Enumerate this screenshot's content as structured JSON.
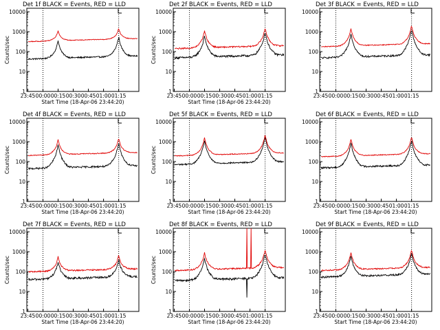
{
  "figure": {
    "background": "#ffffff",
    "colors": {
      "events": "#000000",
      "lld": "#e00000",
      "axes": "#000000"
    }
  },
  "chart_data": [
    {
      "type": "line",
      "title": "Det 1f BLACK = Events, RED = LLD",
      "xlabel": "Start Time (18-Apr-06 23:44:20)",
      "ylabel": "Counts/sec",
      "x_ticks": [
        "23:45",
        "00:00",
        "00:15",
        "00:30",
        "00:45",
        "01:00",
        "01:15"
      ],
      "y_ticks": [
        "1",
        "10",
        "100",
        "1000",
        "10000"
      ],
      "yscale": "log",
      "ylim": [
        1,
        15000
      ],
      "xlim_minutes": [
        -16,
        95
      ],
      "vlines_minutes": [
        0,
        75
      ],
      "series": [
        {
          "name": "Events",
          "color": "#000000",
          "base": 48,
          "peaks": [
            {
              "at": 15,
              "h": 400
            },
            {
              "at": 75,
              "h": 600
            }
          ],
          "noise": 0.08
        },
        {
          "name": "LLD",
          "color": "#e00000",
          "base": 360,
          "peaks": [
            {
              "at": 15,
              "h": 1200
            },
            {
              "at": 75,
              "h": 1500
            }
          ],
          "noise": 0.04
        }
      ]
    },
    {
      "type": "line",
      "title": "Det 2f BLACK = Events, RED = LLD",
      "xlabel": "Start Time (18-Apr-06 23:44:20)",
      "ylabel": "Counts/sec",
      "x_ticks": [
        "23:45",
        "00:00",
        "00:15",
        "00:30",
        "00:45",
        "01:00",
        "01:15"
      ],
      "y_ticks": [
        "1",
        "10",
        "100",
        "1000",
        "10000"
      ],
      "yscale": "log",
      "ylim": [
        1,
        15000
      ],
      "xlim_minutes": [
        -16,
        95
      ],
      "vlines_minutes": [
        0,
        75
      ],
      "series": [
        {
          "name": "Events",
          "color": "#000000",
          "base": 55,
          "peaks": [
            {
              "at": 15,
              "h": 700
            },
            {
              "at": 75,
              "h": 1100
            }
          ],
          "noise": 0.12
        },
        {
          "name": "LLD",
          "color": "#e00000",
          "base": 160,
          "peaks": [
            {
              "at": 15,
              "h": 1300
            },
            {
              "at": 75,
              "h": 1700
            }
          ],
          "noise": 0.08
        }
      ]
    },
    {
      "type": "line",
      "title": "Det 3f BLACK = Events, RED = LLD",
      "xlabel": "",
      "ylabel": "",
      "x_ticks": [
        "23:45",
        "00:00",
        "00:15",
        "00:30",
        "00:45",
        "01:00",
        "01:15"
      ],
      "y_ticks": [
        "1",
        "10",
        "100",
        "1000",
        "10000"
      ],
      "yscale": "log",
      "ylim": [
        1,
        15000
      ],
      "xlim_minutes": [
        -16,
        95
      ],
      "vlines_minutes": [
        0,
        75
      ],
      "series": [
        {
          "name": "Events",
          "color": "#000000",
          "base": 55,
          "peaks": [
            {
              "at": 15,
              "h": 900
            },
            {
              "at": 75,
              "h": 1500
            }
          ],
          "noise": 0.1
        },
        {
          "name": "LLD",
          "color": "#e00000",
          "base": 200,
          "peaks": [
            {
              "at": 15,
              "h": 1600
            },
            {
              "at": 75,
              "h": 2200
            }
          ],
          "noise": 0.05
        }
      ]
    },
    {
      "type": "line",
      "title": "Det 4f BLACK = Events, RED = LLD",
      "xlabel": "Start Time (18-Apr-06 23:44:20)",
      "ylabel": "Counts/sec",
      "x_ticks": [
        "23:45",
        "00:00",
        "00:15",
        "00:30",
        "00:45",
        "01:00",
        "01:15"
      ],
      "y_ticks": [
        "1",
        "10",
        "100",
        "1000",
        "10000"
      ],
      "yscale": "log",
      "ylim": [
        1,
        15000
      ],
      "xlim_minutes": [
        -16,
        95
      ],
      "vlines_minutes": [
        0,
        75
      ],
      "series": [
        {
          "name": "Events",
          "color": "#000000",
          "base": 50,
          "peaks": [
            {
              "at": 15,
              "h": 800
            },
            {
              "at": 75,
              "h": 1000
            }
          ],
          "noise": 0.1
        },
        {
          "name": "LLD",
          "color": "#e00000",
          "base": 230,
          "peaks": [
            {
              "at": 15,
              "h": 1400
            },
            {
              "at": 75,
              "h": 1600
            }
          ],
          "noise": 0.05
        }
      ]
    },
    {
      "type": "line",
      "title": "Det 5f BLACK = Events, RED = LLD",
      "xlabel": "Start Time (18-Apr-06 23:44:20)",
      "ylabel": "Counts/sec",
      "x_ticks": [
        "23:45",
        "00:00",
        "00:15",
        "00:30",
        "00:45",
        "01:00",
        "01:15"
      ],
      "y_ticks": [
        "1",
        "10",
        "100",
        "1000",
        "10000"
      ],
      "yscale": "log",
      "ylim": [
        1,
        15000
      ],
      "xlim_minutes": [
        -16,
        95
      ],
      "vlines_minutes": [
        0,
        75
      ],
      "series": [
        {
          "name": "Events",
          "color": "#000000",
          "base": 80,
          "peaks": [
            {
              "at": 15,
              "h": 1300
            },
            {
              "at": 75,
              "h": 2000
            }
          ],
          "noise": 0.08
        },
        {
          "name": "LLD",
          "color": "#e00000",
          "base": 220,
          "peaks": [
            {
              "at": 15,
              "h": 1800
            },
            {
              "at": 75,
              "h": 2400
            }
          ],
          "noise": 0.05
        }
      ]
    },
    {
      "type": "line",
      "title": "Det 6f BLACK = Events, RED = LLD",
      "xlabel": "Start Time (18-Apr-06 23:44:20)",
      "ylabel": "",
      "x_ticks": [
        "23:45",
        "00:00",
        "00:15",
        "00:30",
        "00:45",
        "01:00",
        "01:15"
      ],
      "y_ticks": [
        "1",
        "10",
        "100",
        "1000",
        "10000"
      ],
      "yscale": "log",
      "ylim": [
        1,
        15000
      ],
      "xlim_minutes": [
        -16,
        95
      ],
      "vlines_minutes": [
        0,
        75
      ],
      "series": [
        {
          "name": "Events",
          "color": "#000000",
          "base": 55,
          "peaks": [
            {
              "at": 15,
              "h": 1000
            },
            {
              "at": 75,
              "h": 1300
            }
          ],
          "noise": 0.1
        },
        {
          "name": "LLD",
          "color": "#e00000",
          "base": 200,
          "peaks": [
            {
              "at": 15,
              "h": 1500
            },
            {
              "at": 75,
              "h": 1900
            }
          ],
          "noise": 0.05
        }
      ]
    },
    {
      "type": "line",
      "title": "Det 7f BLACK = Events, RED = LLD",
      "xlabel": "Start Time (18-Apr-06 23:44:20)",
      "ylabel": "Counts/sec",
      "x_ticks": [
        "23:45",
        "00:00",
        "00:15",
        "00:30",
        "00:45",
        "01:00",
        "01:15"
      ],
      "y_ticks": [
        "1",
        "10",
        "100",
        "1000",
        "10000"
      ],
      "yscale": "log",
      "ylim": [
        1,
        15000
      ],
      "xlim_minutes": [
        -16,
        95
      ],
      "vlines_minutes": [
        0,
        75
      ],
      "series": [
        {
          "name": "Events",
          "color": "#000000",
          "base": 45,
          "peaks": [
            {
              "at": 15,
              "h": 350
            },
            {
              "at": 75,
              "h": 450
            }
          ],
          "noise": 0.12
        },
        {
          "name": "LLD",
          "color": "#e00000",
          "base": 110,
          "peaks": [
            {
              "at": 15,
              "h": 600
            },
            {
              "at": 75,
              "h": 700
            }
          ],
          "noise": 0.08
        }
      ]
    },
    {
      "type": "line",
      "title": "Det 8f BLACK = Events, RED = LLD",
      "xlabel": "Start Time (18-Apr-06 23:44:20)",
      "ylabel": "Counts/sec",
      "x_ticks": [
        "23:45",
        "00:00",
        "00:15",
        "00:30",
        "00:45",
        "01:00",
        "01:15"
      ],
      "y_ticks": [
        "1",
        "10",
        "100",
        "1000",
        "10000"
      ],
      "yscale": "log",
      "ylim": [
        1,
        15000
      ],
      "xlim_minutes": [
        -16,
        95
      ],
      "vlines_minutes": [
        0,
        75
      ],
      "series": [
        {
          "name": "Events",
          "color": "#000000",
          "base": 40,
          "peaks": [
            {
              "at": 15,
              "h": 550
            },
            {
              "at": 75,
              "h": 950
            }
          ],
          "noise": 0.12,
          "spikes": [
            {
              "at": 57,
              "v": 5
            }
          ]
        },
        {
          "name": "LLD",
          "color": "#e00000",
          "base": 130,
          "peaks": [
            {
              "at": 15,
              "h": 1000
            },
            {
              "at": 75,
              "h": 1400
            }
          ],
          "noise": 0.08,
          "spikes": [
            {
              "at": 57,
              "v": 15000
            },
            {
              "at": 61,
              "v": 15000
            }
          ]
        }
      ]
    },
    {
      "type": "line",
      "title": "Det 9f BLACK = Events, RED = LLD",
      "xlabel": "Start Time (18-Apr-06 23:44:20)",
      "ylabel": "",
      "x_ticks": [
        "23:45",
        "00:00",
        "00:15",
        "00:30",
        "00:45",
        "01:00",
        "01:15"
      ],
      "y_ticks": [
        "1",
        "10",
        "100",
        "1000",
        "10000"
      ],
      "yscale": "log",
      "ylim": [
        1,
        15000
      ],
      "xlim_minutes": [
        -16,
        95
      ],
      "vlines_minutes": [
        0,
        75
      ],
      "series": [
        {
          "name": "Events",
          "color": "#000000",
          "base": 60,
          "peaks": [
            {
              "at": 15,
              "h": 700
            },
            {
              "at": 75,
              "h": 1000
            }
          ],
          "noise": 0.1
        },
        {
          "name": "LLD",
          "color": "#e00000",
          "base": 130,
          "peaks": [
            {
              "at": 15,
              "h": 1000
            },
            {
              "at": 75,
              "h": 1300
            }
          ],
          "noise": 0.07
        }
      ]
    }
  ]
}
